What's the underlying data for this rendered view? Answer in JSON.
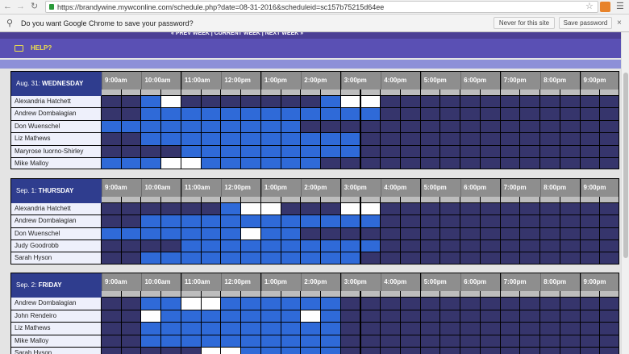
{
  "browser": {
    "url": "https://brandywine.mywconline.com/schedule.php?date=08-31-2016&scheduleid=sc157b75215d64ee",
    "prompt": "Do you want Google Chrome to save your password?",
    "buttons": [
      "Never for this site",
      "Save password"
    ]
  },
  "nav": "« PREV WEEK | CURRENT WEEK | NEXT WEEK »",
  "help": "HELP?",
  "times": [
    "9:00am",
    "10:00am",
    "11:00am",
    "12:00pm",
    "1:00pm",
    "2:00pm",
    "3:00pm",
    "4:00pm",
    "5:00pm",
    "6:00pm",
    "7:00pm",
    "8:00pm",
    "9:00pm"
  ],
  "days": [
    {
      "date": "Aug. 31:",
      "weekday": "WEDNESDAY",
      "rows": [
        {
          "name": "Alexandria Hatchett",
          "slots": "ddbwdddddddbwwdddddddddddd"
        },
        {
          "name": "Andrew Dombalagian",
          "slots": "ddbbbbbbbbbbbbdddddddddddd"
        },
        {
          "name": "Don Wuenschel",
          "slots": "bbbbbbbbbbdddddddddddddddd"
        },
        {
          "name": "Liz Mathews",
          "slots": "ddbbbbbbbbbbbddddddddddddd"
        },
        {
          "name": "Maryrose Iuorno-Shirley",
          "slots": "ddddbbbbbbbbbddddddddddddd"
        },
        {
          "name": "Mike Malloy",
          "slots": "bbbwwbbbbbbddddddddddddddd"
        }
      ]
    },
    {
      "date": "Sep. 1:",
      "weekday": "THURSDAY",
      "rows": [
        {
          "name": "Alexandria Hatchett",
          "slots": "ddddddbwwdddwwdddddddddddd"
        },
        {
          "name": "Andrew Dombalagian",
          "slots": "ddbbbbbbbbbbbbdddddddddddd"
        },
        {
          "name": "Don Wuenschel",
          "slots": "bbbbbbbwbbdddddddddddddddd"
        },
        {
          "name": "Judy Goodrobb",
          "slots": "ddddbbbbbbbbbbdddddddddddd"
        },
        {
          "name": "Sarah Hyson",
          "slots": "ddbbbbbbbbbbbddddddddddddd"
        }
      ]
    },
    {
      "date": "Sep. 2:",
      "weekday": "FRIDAY",
      "rows": [
        {
          "name": "Andrew Dombalagian",
          "slots": "ddbbwwbbbbbbdddddddddddddd"
        },
        {
          "name": "John Rendeiro",
          "slots": "ddwbbbbbbbwbdddddddddddddd"
        },
        {
          "name": "Liz Mathews",
          "slots": "ddbbbbbbbbbbdddddddddddddd"
        },
        {
          "name": "Mike Malloy",
          "slots": "ddbbbbbbbbbbdddddddddddddd"
        },
        {
          "name": "Sarah Hyson",
          "slots": "dddddwwbbbbbdddddddddddddd"
        }
      ]
    }
  ]
}
